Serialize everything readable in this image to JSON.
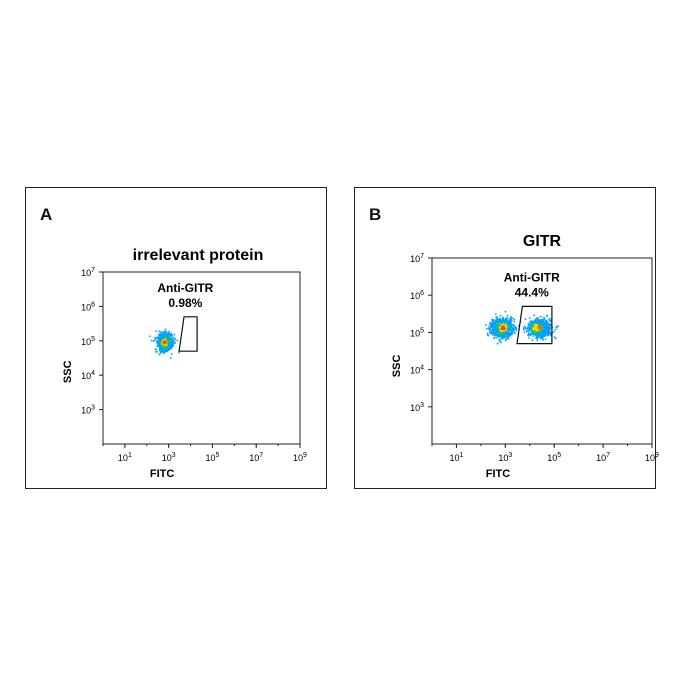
{
  "chart_data": [
    {
      "type": "scatter",
      "panel_label": "A",
      "title": "irrelevant protein",
      "xlabel": "FITC",
      "ylabel": "SSC",
      "x_scale": "log",
      "y_scale": "log",
      "xlim": [
        1,
        1000000000.0
      ],
      "ylim": [
        100,
        10000000.0
      ],
      "x_tick_labels": [
        "10",
        "10",
        "10",
        "10",
        "10"
      ],
      "x_tick_exponents": [
        "1",
        "3",
        "5",
        "7",
        "9"
      ],
      "x_tick_values": [
        10,
        1000,
        100000,
        10000000,
        1000000000
      ],
      "y_tick_labels": [
        "10",
        "10",
        "10",
        "10",
        "10"
      ],
      "y_tick_exponents": [
        "3",
        "4",
        "5",
        "6",
        "7"
      ],
      "y_tick_values": [
        1000,
        10000,
        100000,
        1000000,
        10000000
      ],
      "gate": {
        "name": "Anti-GITR",
        "percent": "0.98%",
        "vertices": [
          [
            3000,
            50000
          ],
          [
            20000,
            50000
          ],
          [
            20000,
            500000
          ],
          [
            5000,
            500000
          ]
        ]
      },
      "populations": [
        {
          "center": [
            700,
            90000
          ],
          "spread": [
            0.17,
            0.12
          ],
          "count": 900,
          "color": "#00a0ff"
        }
      ],
      "density_cores": [
        {
          "center": [
            650,
            90000
          ],
          "spread": [
            0.08,
            0.06
          ],
          "count": 140,
          "color": "#2ecc40"
        },
        {
          "center": [
            650,
            90000
          ],
          "spread": [
            0.05,
            0.035
          ],
          "count": 60,
          "color": "#ffd600"
        },
        {
          "center": [
            640,
            90000
          ],
          "spread": [
            0.025,
            0.02
          ],
          "count": 25,
          "color": "#ff4400"
        }
      ],
      "grid": false
    },
    {
      "type": "scatter",
      "panel_label": "B",
      "title": "GITR",
      "xlabel": "FITC",
      "ylabel": "SSC",
      "x_scale": "log",
      "y_scale": "log",
      "xlim": [
        1,
        1000000000.0
      ],
      "ylim": [
        100,
        10000000.0
      ],
      "x_tick_labels": [
        "10",
        "10",
        "10",
        "10",
        "10"
      ],
      "x_tick_exponents": [
        "1",
        "3",
        "5",
        "7",
        "9"
      ],
      "x_tick_values": [
        10,
        1000,
        100000,
        10000000,
        1000000000
      ],
      "y_tick_labels": [
        "10",
        "10",
        "10",
        "10",
        "10"
      ],
      "y_tick_exponents": [
        "3",
        "4",
        "5",
        "6",
        "7"
      ],
      "y_tick_values": [
        1000,
        10000,
        100000,
        1000000,
        10000000
      ],
      "gate": {
        "name": "Anti-GITR",
        "percent": "44.4%",
        "vertices": [
          [
            3000,
            50000
          ],
          [
            80000,
            50000
          ],
          [
            80000,
            500000
          ],
          [
            5000,
            500000
          ]
        ]
      },
      "populations": [
        {
          "center": [
            700,
            130000
          ],
          "spread": [
            0.22,
            0.12
          ],
          "count": 900,
          "color": "#00a0ff"
        },
        {
          "center": [
            25000,
            130000
          ],
          "spread": [
            0.22,
            0.11
          ],
          "count": 900,
          "color": "#00a0ff"
        }
      ],
      "density_cores": [
        {
          "center": [
            800,
            130000
          ],
          "spread": [
            0.1,
            0.06
          ],
          "count": 160,
          "color": "#2ecc40"
        },
        {
          "center": [
            800,
            130000
          ],
          "spread": [
            0.06,
            0.04
          ],
          "count": 80,
          "color": "#ffd600"
        },
        {
          "center": [
            800,
            130000
          ],
          "spread": [
            0.03,
            0.02
          ],
          "count": 35,
          "color": "#ff3300"
        },
        {
          "center": [
            20000,
            130000
          ],
          "spread": [
            0.1,
            0.05
          ],
          "count": 150,
          "color": "#2ecc40"
        },
        {
          "center": [
            18000,
            130000
          ],
          "spread": [
            0.06,
            0.035
          ],
          "count": 70,
          "color": "#ffd600"
        },
        {
          "center": [
            25000,
            135000
          ],
          "spread": [
            0.035,
            0.02
          ],
          "count": 30,
          "color": "#ff6a00"
        }
      ],
      "grid": false
    }
  ]
}
